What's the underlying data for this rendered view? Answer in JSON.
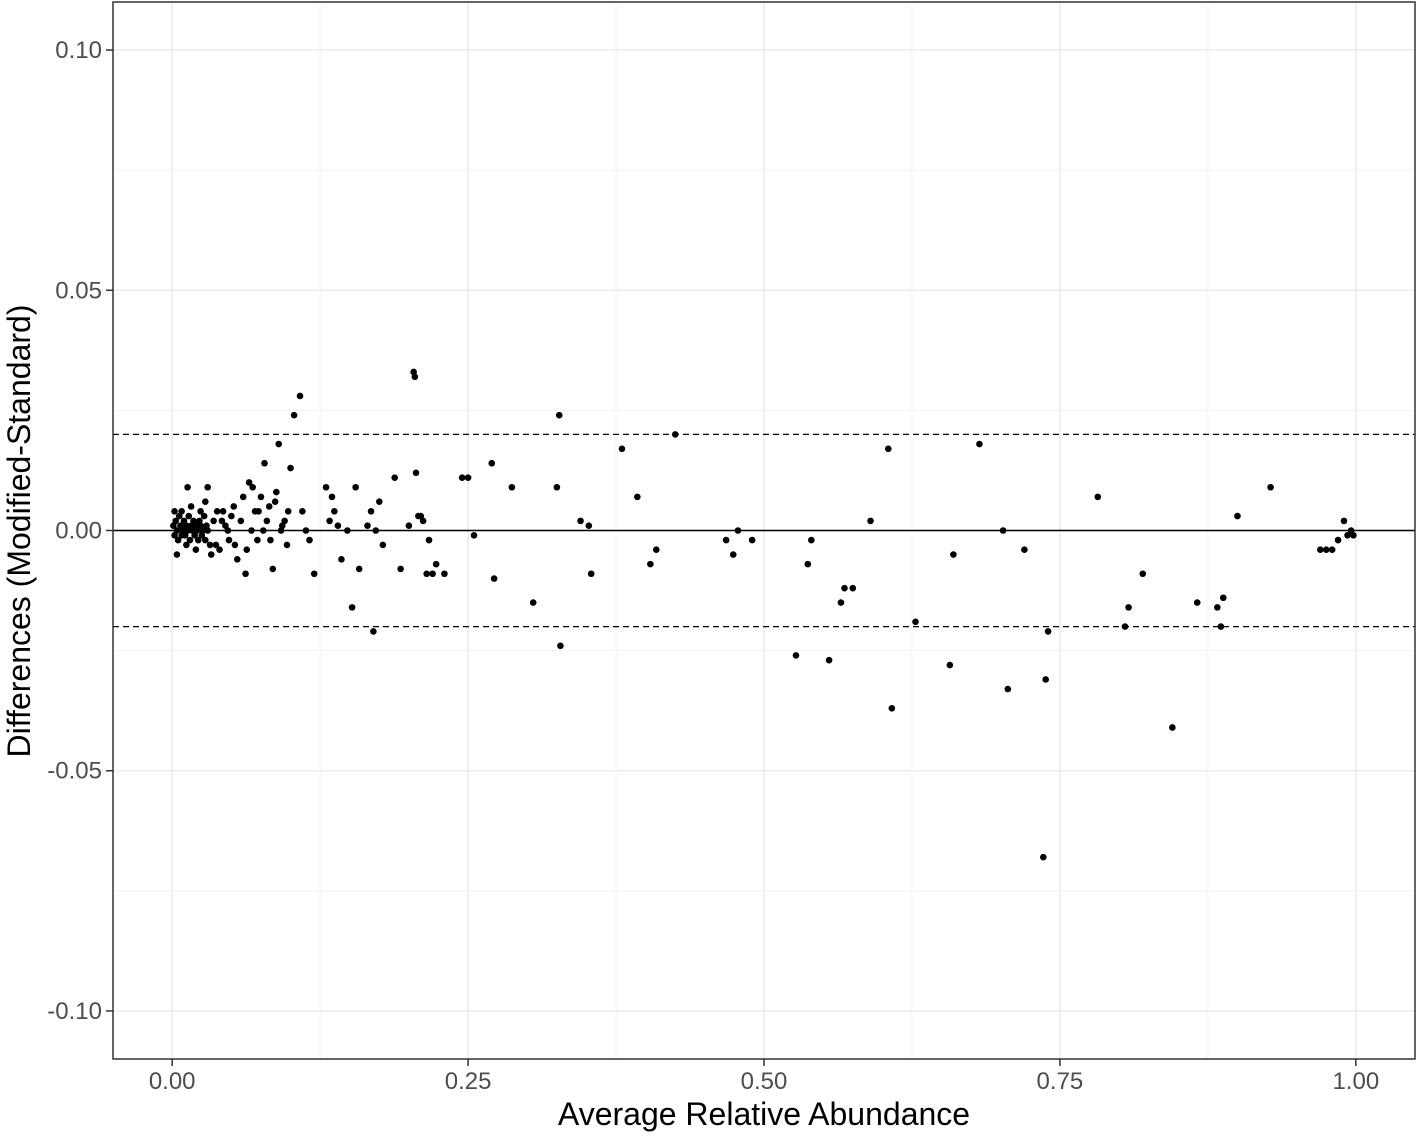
{
  "chart_data": {
    "type": "scatter",
    "title": "",
    "xlabel": "Average Relative Abundance",
    "ylabel": "Differences (Modified-Standard)",
    "xlim": [
      -0.05,
      1.05
    ],
    "ylim": [
      -0.11,
      0.11
    ],
    "x_ticks": [
      0.0,
      0.25,
      0.5,
      0.75,
      1.0
    ],
    "x_tick_labels": [
      "0.00",
      "0.25",
      "0.50",
      "0.75",
      "1.00"
    ],
    "y_ticks": [
      0.1,
      0.05,
      0.0,
      -0.05,
      -0.1
    ],
    "y_tick_labels": [
      "0.10",
      "0.05",
      "0.00",
      "-0.05",
      "-0.10"
    ],
    "grid": true,
    "reference_lines": [
      {
        "y": 0.0,
        "style": "solid"
      },
      {
        "y": 0.02,
        "style": "dashed"
      },
      {
        "y": -0.02,
        "style": "dashed"
      }
    ],
    "points": [
      [
        0.001,
        0.001
      ],
      [
        0.002,
        -0.001
      ],
      [
        0.003,
        0.002
      ],
      [
        0.004,
        0.0
      ],
      [
        0.005,
        -0.002
      ],
      [
        0.006,
        0.003
      ],
      [
        0.007,
        0.001
      ],
      [
        0.008,
        -0.001
      ],
      [
        0.009,
        0.0
      ],
      [
        0.01,
        0.002
      ],
      [
        0.011,
        -0.001
      ],
      [
        0.012,
        0.001
      ],
      [
        0.013,
        0.0
      ],
      [
        0.014,
        0.003
      ],
      [
        0.015,
        -0.002
      ],
      [
        0.016,
        0.001
      ],
      [
        0.017,
        0.0
      ],
      [
        0.018,
        0.002
      ],
      [
        0.019,
        -0.001
      ],
      [
        0.02,
        0.001
      ],
      [
        0.021,
        0.0
      ],
      [
        0.022,
        -0.002
      ],
      [
        0.023,
        0.002
      ],
      [
        0.024,
        0.001
      ],
      [
        0.025,
        -0.001
      ],
      [
        0.026,
        0.0
      ],
      [
        0.027,
        0.003
      ],
      [
        0.028,
        -0.002
      ],
      [
        0.029,
        0.001
      ],
      [
        0.03,
        0.0
      ],
      [
        0.002,
        0.004
      ],
      [
        0.004,
        -0.005
      ],
      [
        0.008,
        0.004
      ],
      [
        0.012,
        -0.003
      ],
      [
        0.016,
        0.005
      ],
      [
        0.02,
        -0.004
      ],
      [
        0.024,
        0.004
      ],
      [
        0.028,
        0.006
      ],
      [
        0.032,
        -0.003
      ],
      [
        0.035,
        0.002
      ],
      [
        0.038,
        0.004
      ],
      [
        0.04,
        -0.004
      ],
      [
        0.042,
        0.002
      ],
      [
        0.045,
        0.001
      ],
      [
        0.048,
        -0.002
      ],
      [
        0.05,
        0.003
      ],
      [
        0.052,
        0.005
      ],
      [
        0.055,
        -0.006
      ],
      [
        0.058,
        0.002
      ],
      [
        0.06,
        0.007
      ],
      [
        0.063,
        -0.004
      ],
      [
        0.065,
        0.01
      ],
      [
        0.068,
        0.009
      ],
      [
        0.07,
        0.004
      ],
      [
        0.072,
        -0.002
      ],
      [
        0.075,
        0.007
      ],
      [
        0.078,
        0.014
      ],
      [
        0.08,
        0.002
      ],
      [
        0.082,
        0.005
      ],
      [
        0.085,
        -0.008
      ],
      [
        0.088,
        0.008
      ],
      [
        0.09,
        0.018
      ],
      [
        0.092,
        0.0
      ],
      [
        0.095,
        0.002
      ],
      [
        0.098,
        0.004
      ],
      [
        0.1,
        0.013
      ],
      [
        0.103,
        0.024
      ],
      [
        0.108,
        0.028
      ],
      [
        0.11,
        0.004
      ],
      [
        0.113,
        0.0
      ],
      [
        0.116,
        -0.002
      ],
      [
        0.12,
        -0.009
      ],
      [
        0.013,
        0.009
      ],
      [
        0.03,
        0.009
      ],
      [
        0.033,
        -0.005
      ],
      [
        0.037,
        -0.003
      ],
      [
        0.043,
        0.004
      ],
      [
        0.047,
        0.0
      ],
      [
        0.053,
        -0.003
      ],
      [
        0.062,
        -0.009
      ],
      [
        0.067,
        0.0
      ],
      [
        0.073,
        0.004
      ],
      [
        0.077,
        0.0
      ],
      [
        0.083,
        -0.002
      ],
      [
        0.087,
        0.006
      ],
      [
        0.093,
        0.001
      ],
      [
        0.097,
        -0.003
      ],
      [
        0.13,
        0.009
      ],
      [
        0.133,
        0.002
      ],
      [
        0.135,
        0.007
      ],
      [
        0.137,
        0.004
      ],
      [
        0.14,
        0.001
      ],
      [
        0.143,
        -0.006
      ],
      [
        0.148,
        0.0
      ],
      [
        0.152,
        -0.016
      ],
      [
        0.155,
        0.009
      ],
      [
        0.158,
        -0.008
      ],
      [
        0.165,
        0.001
      ],
      [
        0.168,
        0.004
      ],
      [
        0.17,
        -0.021
      ],
      [
        0.172,
        0.0
      ],
      [
        0.175,
        0.006
      ],
      [
        0.178,
        -0.003
      ],
      [
        0.188,
        0.011
      ],
      [
        0.193,
        -0.008
      ],
      [
        0.2,
        0.001
      ],
      [
        0.204,
        0.033
      ],
      [
        0.205,
        0.032
      ],
      [
        0.206,
        0.012
      ],
      [
        0.208,
        0.003
      ],
      [
        0.21,
        0.003
      ],
      [
        0.212,
        0.002
      ],
      [
        0.215,
        -0.009
      ],
      [
        0.217,
        -0.002
      ],
      [
        0.22,
        -0.009
      ],
      [
        0.223,
        -0.007
      ],
      [
        0.23,
        -0.009
      ],
      [
        0.245,
        0.011
      ],
      [
        0.25,
        0.011
      ],
      [
        0.255,
        -0.001
      ],
      [
        0.27,
        0.014
      ],
      [
        0.272,
        -0.01
      ],
      [
        0.287,
        0.009
      ],
      [
        0.305,
        -0.015
      ],
      [
        0.325,
        0.009
      ],
      [
        0.327,
        0.024
      ],
      [
        0.328,
        -0.024
      ],
      [
        0.345,
        0.002
      ],
      [
        0.352,
        0.001
      ],
      [
        0.354,
        -0.009
      ],
      [
        0.38,
        0.017
      ],
      [
        0.393,
        0.007
      ],
      [
        0.404,
        -0.007
      ],
      [
        0.409,
        -0.004
      ],
      [
        0.425,
        0.02
      ],
      [
        0.468,
        -0.002
      ],
      [
        0.474,
        -0.005
      ],
      [
        0.478,
        0.0
      ],
      [
        0.49,
        -0.002
      ],
      [
        0.527,
        -0.026
      ],
      [
        0.537,
        -0.007
      ],
      [
        0.54,
        -0.002
      ],
      [
        0.555,
        -0.027
      ],
      [
        0.565,
        -0.015
      ],
      [
        0.568,
        -0.012
      ],
      [
        0.575,
        -0.012
      ],
      [
        0.59,
        0.002
      ],
      [
        0.605,
        0.017
      ],
      [
        0.608,
        -0.037
      ],
      [
        0.628,
        -0.019
      ],
      [
        0.657,
        -0.028
      ],
      [
        0.66,
        -0.005
      ],
      [
        0.682,
        0.018
      ],
      [
        0.702,
        0.0
      ],
      [
        0.706,
        -0.033
      ],
      [
        0.72,
        -0.004
      ],
      [
        0.736,
        -0.068
      ],
      [
        0.738,
        -0.031
      ],
      [
        0.74,
        -0.021
      ],
      [
        0.782,
        0.007
      ],
      [
        0.805,
        -0.02
      ],
      [
        0.808,
        -0.016
      ],
      [
        0.82,
        -0.009
      ],
      [
        0.845,
        -0.041
      ],
      [
        0.866,
        -0.015
      ],
      [
        0.883,
        -0.016
      ],
      [
        0.886,
        -0.02
      ],
      [
        0.888,
        -0.014
      ],
      [
        0.9,
        0.003
      ],
      [
        0.928,
        0.009
      ],
      [
        0.97,
        -0.004
      ],
      [
        0.975,
        -0.004
      ],
      [
        0.98,
        -0.004
      ],
      [
        0.985,
        -0.002
      ],
      [
        0.99,
        0.002
      ],
      [
        0.993,
        -0.001
      ],
      [
        0.996,
        0.0
      ],
      [
        0.998,
        -0.001
      ]
    ]
  }
}
